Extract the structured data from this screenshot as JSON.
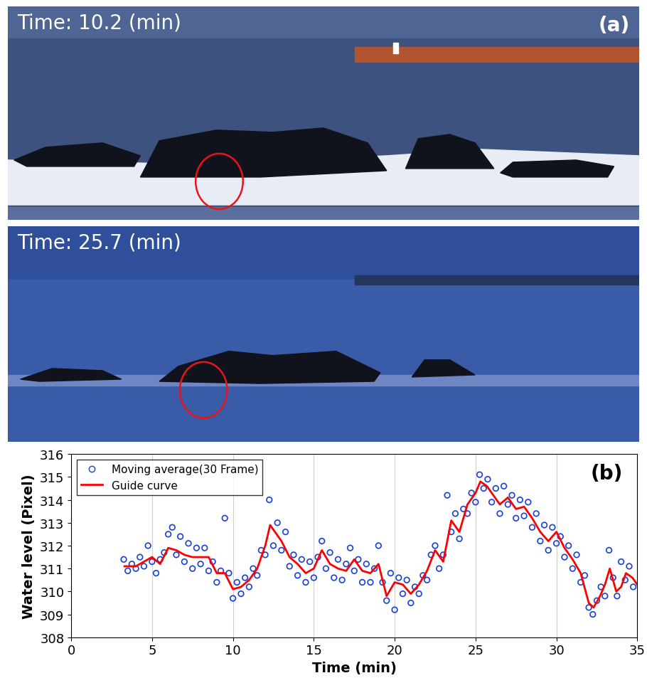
{
  "photos": [
    {
      "caption": "Time: 10.2 (min)",
      "panel": "(a)"
    },
    {
      "caption": "Time: 25.7 (min)"
    }
  ],
  "chart_data": {
    "type": "scatter",
    "annotations": [
      "(b)"
    ],
    "x_label": "Time (min)",
    "y_label": "Water level (Pixel)",
    "xlim": [
      0,
      35
    ],
    "xticks": [
      0,
      5,
      10,
      15,
      20,
      25,
      30,
      35
    ],
    "ylim": [
      308,
      316
    ],
    "yticks": [
      308,
      309,
      310,
      311,
      312,
      313,
      314,
      315,
      316
    ],
    "grid": "x",
    "legend": "upper left",
    "series": [
      {
        "name": "Moving average(30 Frame)",
        "type": "scatter",
        "marker": "circle",
        "color": "#1a3fd6",
        "x": [
          3.25,
          3.5,
          3.75,
          4.0,
          4.25,
          4.5,
          4.75,
          5.0,
          5.25,
          5.5,
          5.75,
          6.0,
          6.25,
          6.5,
          6.75,
          7.0,
          7.25,
          7.5,
          7.75,
          8.0,
          8.25,
          8.5,
          8.75,
          9.0,
          9.25,
          9.5,
          9.75,
          10.0,
          10.25,
          10.5,
          10.75,
          11.0,
          11.25,
          11.5,
          11.75,
          12.0,
          12.25,
          12.5,
          12.75,
          13.0,
          13.25,
          13.5,
          13.75,
          14.0,
          14.25,
          14.5,
          14.75,
          15.0,
          15.25,
          15.5,
          15.75,
          16.0,
          16.25,
          16.5,
          16.75,
          17.0,
          17.25,
          17.5,
          17.75,
          18.0,
          18.25,
          18.5,
          18.75,
          19.0,
          19.25,
          19.5,
          19.75,
          20.0,
          20.25,
          20.5,
          20.75,
          21.0,
          21.25,
          21.5,
          21.75,
          22.0,
          22.25,
          22.5,
          22.75,
          23.0,
          23.25,
          23.5,
          23.75,
          24.0,
          24.25,
          24.5,
          24.75,
          25.0,
          25.25,
          25.5,
          25.75,
          26.0,
          26.25,
          26.5,
          26.75,
          27.0,
          27.25,
          27.5,
          27.75,
          28.0,
          28.25,
          28.5,
          28.75,
          29.0,
          29.25,
          29.5,
          29.75,
          30.0,
          30.25,
          30.5,
          30.75,
          31.0,
          31.25,
          31.5,
          31.75,
          32.0,
          32.25,
          32.5,
          32.75,
          33.0,
          33.25,
          33.5,
          33.75,
          34.0,
          34.25,
          34.5,
          34.75
        ],
        "values": [
          311.4,
          310.9,
          311.2,
          311.0,
          311.5,
          311.1,
          312.0,
          311.3,
          310.8,
          311.4,
          311.7,
          312.5,
          312.8,
          311.6,
          312.4,
          311.3,
          312.1,
          311.0,
          311.9,
          311.2,
          311.9,
          310.9,
          311.3,
          310.4,
          310.9,
          313.2,
          310.8,
          309.7,
          310.4,
          309.9,
          310.6,
          310.2,
          311.0,
          310.7,
          311.8,
          311.6,
          314.0,
          312.0,
          313.0,
          311.8,
          312.6,
          311.1,
          311.6,
          310.7,
          311.4,
          310.4,
          311.3,
          310.6,
          311.5,
          312.2,
          311.0,
          311.7,
          310.6,
          311.4,
          310.5,
          311.2,
          311.9,
          310.9,
          311.4,
          310.4,
          311.2,
          310.4,
          311.0,
          312.0,
          310.4,
          309.6,
          310.8,
          309.2,
          310.6,
          309.9,
          310.5,
          309.5,
          310.2,
          309.9,
          310.7,
          310.5,
          311.6,
          312.0,
          311.0,
          311.6,
          314.2,
          312.6,
          313.4,
          312.3,
          313.6,
          313.4,
          314.3,
          313.9,
          315.1,
          314.5,
          314.9,
          313.9,
          314.5,
          313.4,
          314.6,
          313.8,
          314.2,
          313.2,
          314.0,
          313.3,
          313.9,
          312.8,
          313.4,
          312.2,
          312.9,
          311.8,
          312.8,
          312.1,
          312.4,
          311.5,
          312.0,
          311.0,
          311.6,
          310.4,
          310.7,
          309.3,
          309.0,
          309.6,
          310.2,
          309.8,
          311.8,
          310.6,
          309.8,
          311.3,
          310.5,
          311.1,
          310.2
        ]
      },
      {
        "name": "Guide curve",
        "type": "line",
        "line_style": "solid",
        "color": "#ff0000",
        "x": [
          3.3,
          4.0,
          4.5,
          5.0,
          5.5,
          6.0,
          6.5,
          7.0,
          7.5,
          8.0,
          8.5,
          9.0,
          9.5,
          10.0,
          10.5,
          11.0,
          11.5,
          12.0,
          12.3,
          12.7,
          13.0,
          13.5,
          14.0,
          14.5,
          15.0,
          15.5,
          16.0,
          16.5,
          17.0,
          17.5,
          18.0,
          18.5,
          19.0,
          19.5,
          20.0,
          20.5,
          21.0,
          21.5,
          22.0,
          22.5,
          23.0,
          23.5,
          24.0,
          24.5,
          25.0,
          25.3,
          25.7,
          26.0,
          26.5,
          27.0,
          27.5,
          28.0,
          28.5,
          29.0,
          29.5,
          30.0,
          30.5,
          31.0,
          31.5,
          32.0,
          32.3,
          32.7,
          33.0,
          33.3,
          33.7,
          34.0,
          34.3,
          34.7,
          35.0
        ],
        "values": [
          311.1,
          311.1,
          311.3,
          311.5,
          311.2,
          311.9,
          311.8,
          311.6,
          311.5,
          311.5,
          311.5,
          310.8,
          310.8,
          310.1,
          310.2,
          310.5,
          311.0,
          312.0,
          312.9,
          312.5,
          312.2,
          311.5,
          311.2,
          310.8,
          311.0,
          311.8,
          311.2,
          311.0,
          310.9,
          311.4,
          310.9,
          310.8,
          311.2,
          309.8,
          310.4,
          310.3,
          309.9,
          310.3,
          310.9,
          311.8,
          311.3,
          313.1,
          312.6,
          313.8,
          314.3,
          314.8,
          314.6,
          314.3,
          313.8,
          314.1,
          313.6,
          313.7,
          313.2,
          312.6,
          312.2,
          312.6,
          311.9,
          311.4,
          310.8,
          309.5,
          309.3,
          309.8,
          310.3,
          311.0,
          310.0,
          310.2,
          310.8,
          310.6,
          310.3
        ]
      }
    ]
  }
}
